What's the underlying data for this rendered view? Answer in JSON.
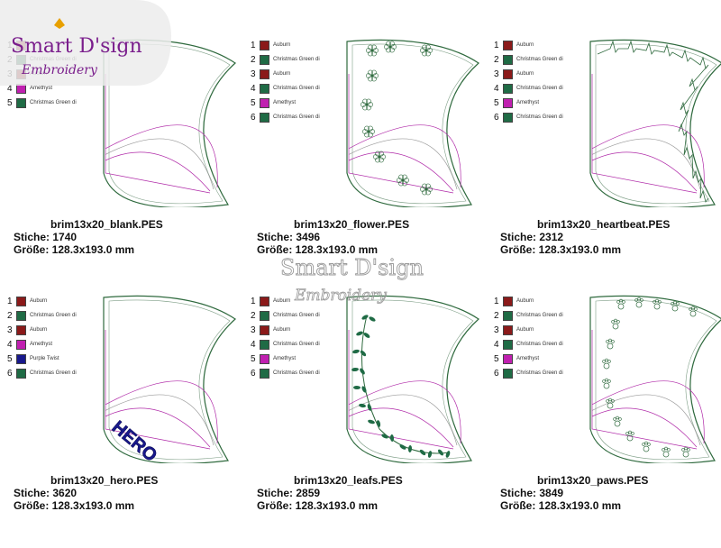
{
  "brand": {
    "line1": "Smart D'sign",
    "line2": "Embroidery"
  },
  "colors": {
    "Auburn": "#8b1a1a",
    "Christmas Green": "#1f6b45",
    "Amethyst": "#c020b0",
    "Purple Twist": "#18188c",
    "outline": "#2f6a3e",
    "placement": "#b02aa8"
  },
  "panels": [
    {
      "file": "brim13x20_blank.PES",
      "stiche_label": "Stiche:",
      "stiche": "1740",
      "groesse_label": "Größe:",
      "groesse": "128.3x193.0 mm",
      "motif": "blank",
      "legend": [
        {
          "n": "1",
          "color": "Auburn",
          "name": ""
        },
        {
          "n": "2",
          "color": "Christmas Green",
          "name": "Christmas Green di"
        },
        {
          "n": "3",
          "color": "Auburn",
          "name": "Auburn"
        },
        {
          "n": "4",
          "color": "Amethyst",
          "name": "Amethyst"
        },
        {
          "n": "5",
          "color": "Christmas Green",
          "name": "Christmas Green di"
        }
      ]
    },
    {
      "file": "brim13x20_flower.PES",
      "stiche_label": "Stiche:",
      "stiche": "3496",
      "groesse_label": "Größe:",
      "groesse": "128.3x193.0 mm",
      "motif": "flower",
      "legend": [
        {
          "n": "1",
          "color": "Auburn",
          "name": "Auburn"
        },
        {
          "n": "2",
          "color": "Christmas Green",
          "name": "Christmas Green di"
        },
        {
          "n": "3",
          "color": "Auburn",
          "name": "Auburn"
        },
        {
          "n": "4",
          "color": "Christmas Green",
          "name": "Christmas Green di"
        },
        {
          "n": "5",
          "color": "Amethyst",
          "name": "Amethyst"
        },
        {
          "n": "6",
          "color": "Christmas Green",
          "name": "Christmas Green di"
        }
      ]
    },
    {
      "file": "brim13x20_heartbeat.PES",
      "stiche_label": "Stiche:",
      "stiche": "2312",
      "groesse_label": "Größe:",
      "groesse": "128.3x193.0 mm",
      "motif": "heartbeat",
      "legend": [
        {
          "n": "1",
          "color": "Auburn",
          "name": "Auburn"
        },
        {
          "n": "2",
          "color": "Christmas Green",
          "name": "Christmas Green di"
        },
        {
          "n": "3",
          "color": "Auburn",
          "name": "Auburn"
        },
        {
          "n": "4",
          "color": "Christmas Green",
          "name": "Christmas Green di"
        },
        {
          "n": "5",
          "color": "Amethyst",
          "name": "Amethyst"
        },
        {
          "n": "6",
          "color": "Christmas Green",
          "name": "Christmas Green di"
        }
      ]
    },
    {
      "file": "brim13x20_hero.PES",
      "stiche_label": "Stiche:",
      "stiche": "3620",
      "groesse_label": "Größe:",
      "groesse": "128.3x193.0 mm",
      "motif": "hero",
      "hero_text": "HERO",
      "legend": [
        {
          "n": "1",
          "color": "Auburn",
          "name": "Auburn"
        },
        {
          "n": "2",
          "color": "Christmas Green",
          "name": "Christmas Green di"
        },
        {
          "n": "3",
          "color": "Auburn",
          "name": "Auburn"
        },
        {
          "n": "4",
          "color": "Amethyst",
          "name": "Amethyst"
        },
        {
          "n": "5",
          "color": "Purple Twist",
          "name": "Purple Twist"
        },
        {
          "n": "6",
          "color": "Christmas Green",
          "name": "Christmas Green di"
        }
      ]
    },
    {
      "file": "brim13x20_leafs.PES",
      "stiche_label": "Stiche:",
      "stiche": "2859",
      "groesse_label": "Größe:",
      "groesse": "128.3x193.0 mm",
      "motif": "leafs",
      "legend": [
        {
          "n": "1",
          "color": "Auburn",
          "name": "Auburn"
        },
        {
          "n": "2",
          "color": "Christmas Green",
          "name": "Christmas Green di"
        },
        {
          "n": "3",
          "color": "Auburn",
          "name": "Auburn"
        },
        {
          "n": "4",
          "color": "Christmas Green",
          "name": "Christmas Green di"
        },
        {
          "n": "5",
          "color": "Amethyst",
          "name": "Amethyst"
        },
        {
          "n": "6",
          "color": "Christmas Green",
          "name": "Christmas Green di"
        }
      ]
    },
    {
      "file": "brim13x20_paws.PES",
      "stiche_label": "Stiche:",
      "stiche": "3849",
      "groesse_label": "Größe:",
      "groesse": "128.3x193.0 mm",
      "motif": "paws",
      "legend": [
        {
          "n": "1",
          "color": "Auburn",
          "name": "Auburn"
        },
        {
          "n": "2",
          "color": "Christmas Green",
          "name": "Christmas Green di"
        },
        {
          "n": "3",
          "color": "Auburn",
          "name": "Auburn"
        },
        {
          "n": "4",
          "color": "Christmas Green",
          "name": "Christmas Green di"
        },
        {
          "n": "5",
          "color": "Amethyst",
          "name": "Amethyst"
        },
        {
          "n": "6",
          "color": "Christmas Green",
          "name": "Christmas Green di"
        }
      ]
    }
  ]
}
